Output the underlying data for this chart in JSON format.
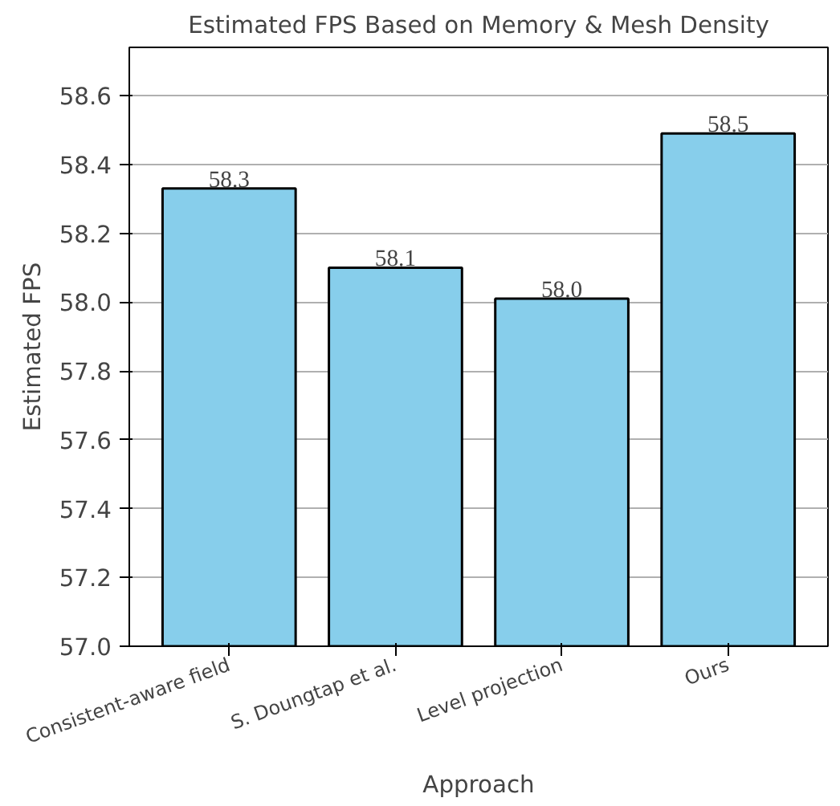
{
  "chart_data": {
    "type": "bar",
    "title": "Estimated FPS Based on Memory & Mesh Density",
    "xlabel": "Approach",
    "ylabel": "Estimated FPS",
    "categories": [
      "Consistent-aware field",
      "S. Doungtap et al.",
      "Level projection",
      "Ours"
    ],
    "values": [
      58.33,
      58.1,
      58.01,
      58.49
    ],
    "color": "#87ceeb",
    "value_labels": [
      "58.3",
      "58.1",
      "58.0",
      "58.5"
    ],
    "ylim": [
      57.0,
      58.74
    ],
    "yticks": [
      {
        "value": 57.0,
        "label": "57.0"
      },
      {
        "value": 57.2,
        "label": "57.2"
      },
      {
        "value": 57.4,
        "label": "57.4"
      },
      {
        "value": 57.6,
        "label": "57.6"
      },
      {
        "value": 57.8,
        "label": "57.8"
      },
      {
        "value": 58.0,
        "label": "58.0"
      },
      {
        "value": 58.2,
        "label": "58.2"
      },
      {
        "value": 58.4,
        "label": "58.4"
      },
      {
        "value": 58.6,
        "label": "58.6"
      }
    ],
    "grid": "y"
  }
}
